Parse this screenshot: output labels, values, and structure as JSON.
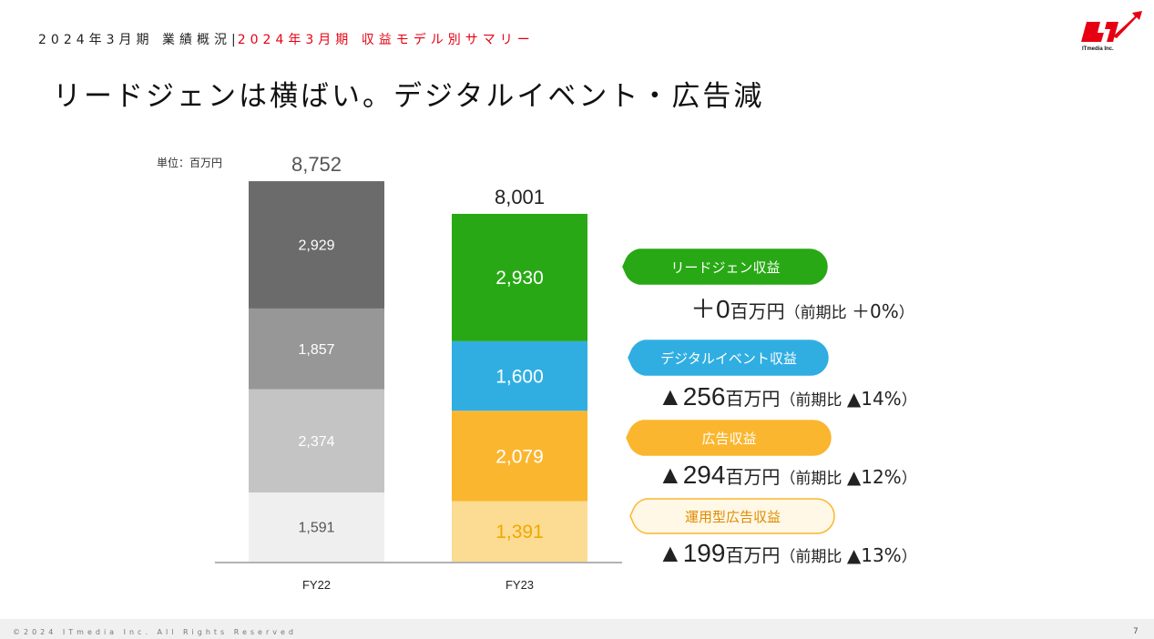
{
  "header": {
    "crumb": "2024年3月期 業績概況",
    "separator": "|",
    "current": "2024年3月期 収益モデル別サマリー"
  },
  "logo": {
    "text": "ITmedia Inc.",
    "brand_color": "#e60012"
  },
  "title": "リードジェンは横ばい。デジタルイベント・広告減",
  "unit_label": "単位：百万円",
  "chart_data": {
    "type": "bar",
    "stacked": true,
    "categories": [
      "FY22",
      "FY23"
    ],
    "totals": [
      "8,752",
      "8,001"
    ],
    "series": [
      {
        "name": "運用型広告収益",
        "values": [
          1591,
          1391
        ],
        "labels": [
          "1,591",
          "1,391"
        ],
        "colors": [
          "#efefef",
          "#fcdc92"
        ],
        "label_colors": [
          "#555555",
          "#f0a800"
        ]
      },
      {
        "name": "広告収益",
        "values": [
          2374,
          2079
        ],
        "labels": [
          "2,374",
          "2,079"
        ],
        "colors": [
          "#c4c4c4",
          "#fbb62f"
        ],
        "label_colors": [
          "#ffffff",
          "#ffffff"
        ]
      },
      {
        "name": "デジタルイベント収益",
        "values": [
          1857,
          1600
        ],
        "labels": [
          "1,857",
          "1,600"
        ],
        "colors": [
          "#979797",
          "#30aee2"
        ],
        "label_colors": [
          "#ffffff",
          "#ffffff"
        ]
      },
      {
        "name": "リードジェン収益",
        "values": [
          2929,
          2930
        ],
        "labels": [
          "2,929",
          "2,930"
        ],
        "colors": [
          "#6b6b6b",
          "#28a815"
        ],
        "label_colors": [
          "#ffffff",
          "#ffffff"
        ]
      }
    ],
    "ylim": [
      0,
      8752
    ]
  },
  "callouts": [
    {
      "label": "リードジェン収益",
      "fill": "#28a815",
      "stroke": "#28a815",
      "text_color": "#ffffff",
      "delta_amount": "＋0",
      "delta_unit": "百万円",
      "delta_pct_prefix": "（前期比 ",
      "delta_pct": "＋0%",
      "delta_pct_suffix": "）"
    },
    {
      "label": "デジタルイベント収益",
      "fill": "#30aee2",
      "stroke": "#30aee2",
      "text_color": "#ffffff",
      "delta_amount": "▲256",
      "delta_unit": "百万円",
      "delta_pct_prefix": "（前期比 ",
      "delta_pct": "▲14%",
      "delta_pct_suffix": "）"
    },
    {
      "label": "広告収益",
      "fill": "#fbb62f",
      "stroke": "#fbb62f",
      "text_color": "#ffffff",
      "delta_amount": "▲294",
      "delta_unit": "百万円",
      "delta_pct_prefix": "（前期比 ",
      "delta_pct": "▲12%",
      "delta_pct_suffix": "）"
    },
    {
      "label": "運用型広告収益",
      "fill": "#fff8e6",
      "stroke": "#fbb62f",
      "text_color": "#e08a00",
      "delta_amount": "▲199",
      "delta_unit": "百万円",
      "delta_pct_prefix": "（前期比 ",
      "delta_pct": "▲13%",
      "delta_pct_suffix": "）"
    }
  ],
  "footer": {
    "copyright": "©2024 ITmedia Inc. All Rights Reserved",
    "page_number": "7"
  }
}
